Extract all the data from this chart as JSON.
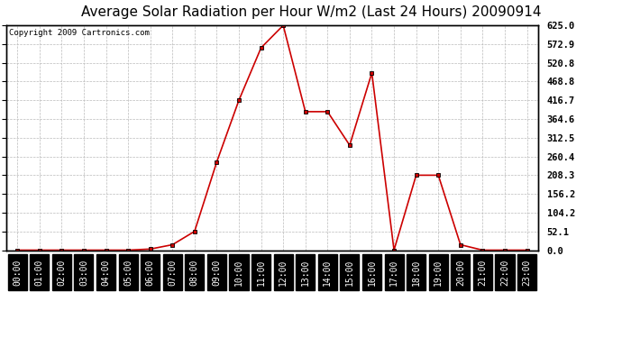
{
  "title": "Average Solar Radiation per Hour W/m2 (Last 24 Hours) 20090914",
  "copyright": "Copyright 2009 Cartronics.com",
  "hours": [
    "00:00",
    "01:00",
    "02:00",
    "03:00",
    "04:00",
    "05:00",
    "06:00",
    "07:00",
    "08:00",
    "09:00",
    "10:00",
    "11:00",
    "12:00",
    "13:00",
    "14:00",
    "15:00",
    "16:00",
    "17:00",
    "18:00",
    "19:00",
    "20:00",
    "21:00",
    "22:00",
    "23:00"
  ],
  "values": [
    0.0,
    0.0,
    0.0,
    0.0,
    0.0,
    0.0,
    3.0,
    15.0,
    52.1,
    245.0,
    416.7,
    562.5,
    625.0,
    385.0,
    385.0,
    291.7,
    493.0,
    0.0,
    208.3,
    208.3,
    15.0,
    0.0,
    0.0,
    0.0
  ],
  "line_color": "#cc0000",
  "marker_color": "#000000",
  "background_color": "#ffffff",
  "plot_bg_color": "#ffffff",
  "grid_color": "#bbbbbb",
  "ytick_labels": [
    "0.0",
    "52.1",
    "104.2",
    "156.2",
    "208.3",
    "260.4",
    "312.5",
    "364.6",
    "416.7",
    "468.8",
    "520.8",
    "572.9",
    "625.0"
  ],
  "ytick_values": [
    0.0,
    52.1,
    104.2,
    156.2,
    208.3,
    260.4,
    312.5,
    364.6,
    416.7,
    468.8,
    520.8,
    572.9,
    625.0
  ],
  "ymax": 625.0,
  "ymin": 0.0,
  "title_fontsize": 11,
  "copyright_fontsize": 6.5,
  "tick_fontsize": 7.5,
  "xtick_fontsize": 7,
  "border_color": "#000000",
  "xticklabel_bg": "#000000",
  "xticklabel_fg": "#ffffff"
}
